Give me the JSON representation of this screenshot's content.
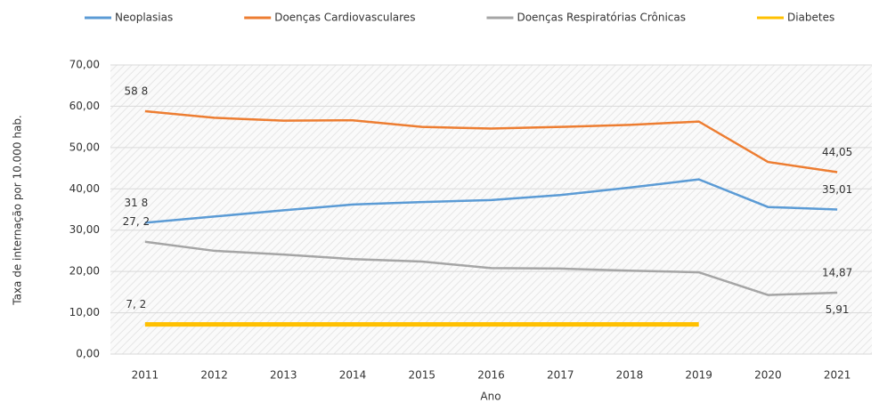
{
  "chart_data": {
    "type": "line",
    "y_label": "Taxa de internação por 10.000 hab.",
    "x_label": "Ano",
    "categories": [
      "2011",
      "2012",
      "2013",
      "2014",
      "2015",
      "2016",
      "2017",
      "2018",
      "2019",
      "2020",
      "2021"
    ],
    "series": [
      {
        "name": "Neoplasias",
        "color": "#5b9bd5",
        "values": [
          31.8,
          33.3,
          34.8,
          36.2,
          36.8,
          37.3,
          38.5,
          40.3,
          42.3,
          35.6,
          35.01
        ],
        "value_labels": [
          "31 8",
          null,
          null,
          null,
          null,
          null,
          null,
          null,
          null,
          null,
          "35,01"
        ]
      },
      {
        "name": "Doenças Cardiovasculares",
        "color": "#ed7d31",
        "values": [
          58.8,
          57.2,
          56.5,
          56.6,
          55.0,
          54.6,
          55.0,
          55.5,
          56.3,
          46.5,
          44.05
        ],
        "value_labels": [
          "58 8",
          null,
          null,
          null,
          null,
          null,
          null,
          null,
          null,
          null,
          "44,05"
        ]
      },
      {
        "name": "Doenças Respiratórias Crônicas",
        "color": "#a5a5a5",
        "values": [
          27.2,
          25.0,
          24.1,
          23.0,
          22.4,
          20.8,
          20.7,
          20.2,
          19.8,
          14.3,
          14.87
        ],
        "value_labels": [
          "27, 2",
          null,
          null,
          null,
          null,
          null,
          null,
          null,
          null,
          null,
          "14,87"
        ]
      },
      {
        "name": "Diabetes",
        "color": "#ffc000",
        "values": [
          7.2,
          7.2,
          7.2,
          7.2,
          7.2,
          7.2,
          7.2,
          7.2,
          7.2,
          null,
          5.91
        ],
        "value_labels": [
          "7, 2",
          null,
          null,
          null,
          null,
          null,
          null,
          null,
          null,
          null,
          "5,91"
        ]
      }
    ],
    "ylim": [
      0,
      70
    ],
    "yticks": [
      {
        "value": 0,
        "label": "0,00"
      },
      {
        "value": 10,
        "label": "10,00"
      },
      {
        "value": 20,
        "label": "20,00"
      },
      {
        "value": 30,
        "label": "30,00"
      },
      {
        "value": 40,
        "label": "40,00"
      },
      {
        "value": 50,
        "label": "50,00"
      },
      {
        "value": 60,
        "label": "60,00"
      },
      {
        "value": 70,
        "label": "70,00"
      }
    ],
    "grid": true,
    "legend": "top"
  }
}
